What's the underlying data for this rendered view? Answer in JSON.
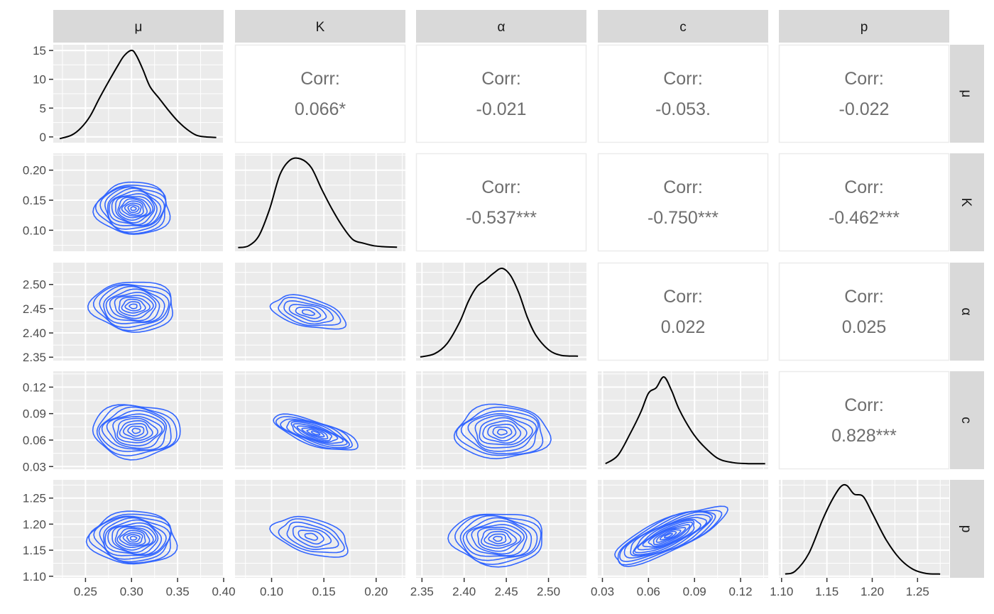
{
  "chart_data": {
    "type": "scatter-matrix",
    "variables": [
      "μ",
      "K",
      "α",
      "c",
      "p"
    ],
    "panel_background": "#EBEBEB",
    "strip_background": "#D9D9D9",
    "contour_color": "#3366FF",
    "density_color": "#000000",
    "correlation_label": "Corr:",
    "correlations": [
      {
        "row": 0,
        "col": 1,
        "value": "0.066*"
      },
      {
        "row": 0,
        "col": 2,
        "value": "-0.021"
      },
      {
        "row": 0,
        "col": 3,
        "value": "-0.053."
      },
      {
        "row": 0,
        "col": 4,
        "value": "-0.022"
      },
      {
        "row": 1,
        "col": 2,
        "value": "-0.537***"
      },
      {
        "row": 1,
        "col": 3,
        "value": "-0.750***"
      },
      {
        "row": 1,
        "col": 4,
        "value": "-0.462***"
      },
      {
        "row": 2,
        "col": 3,
        "value": "0.022"
      },
      {
        "row": 2,
        "col": 4,
        "value": "0.025"
      },
      {
        "row": 3,
        "col": 4,
        "value": "0.828***"
      }
    ],
    "x_axes": [
      {
        "range": [
          0.215,
          0.4
        ],
        "ticks": [
          0.25,
          0.3,
          0.35,
          0.4
        ],
        "labels": [
          "0.25",
          "0.30",
          "0.35",
          "0.40"
        ]
      },
      {
        "range": [
          0.065,
          0.228
        ],
        "ticks": [
          0.1,
          0.15,
          0.2
        ],
        "labels": [
          "0.10",
          "0.15",
          "0.20"
        ]
      },
      {
        "range": [
          2.343,
          2.545
        ],
        "ticks": [
          2.35,
          2.4,
          2.45,
          2.5
        ],
        "labels": [
          "2.35",
          "2.40",
          "2.45",
          "2.50"
        ]
      },
      {
        "range": [
          0.027,
          0.138
        ],
        "ticks": [
          0.03,
          0.06,
          0.09,
          0.12
        ],
        "labels": [
          "0.03",
          "0.06",
          "0.09",
          "0.12"
        ]
      },
      {
        "range": [
          1.097,
          1.285
        ],
        "ticks": [
          1.1,
          1.15,
          1.2,
          1.25
        ],
        "labels": [
          "1.10",
          "1.15",
          "1.20",
          "1.25"
        ]
      }
    ],
    "y_axes": [
      {
        "range": [
          -1,
          16
        ],
        "ticks": [
          0,
          5,
          10,
          15
        ],
        "labels": [
          "0",
          "5",
          "10",
          "15"
        ]
      },
      {
        "range": [
          0.065,
          0.228
        ],
        "ticks": [
          0.1,
          0.15,
          0.2
        ],
        "labels": [
          "0.10",
          "0.15",
          "0.20"
        ]
      },
      {
        "range": [
          2.343,
          2.545
        ],
        "ticks": [
          2.35,
          2.4,
          2.45,
          2.5
        ],
        "labels": [
          "2.35",
          "2.40",
          "2.45",
          "2.50"
        ]
      },
      {
        "range": [
          0.027,
          0.138
        ],
        "ticks": [
          0.03,
          0.06,
          0.09,
          0.12
        ],
        "labels": [
          "0.03",
          "0.06",
          "0.09",
          "0.12"
        ]
      },
      {
        "range": [
          1.097,
          1.285
        ],
        "ticks": [
          1.1,
          1.15,
          1.2,
          1.25
        ],
        "labels": [
          "1.10",
          "1.15",
          "1.20",
          "1.25"
        ]
      }
    ],
    "densities": [
      {
        "var": "μ",
        "x": [
          0.222,
          0.235,
          0.245,
          0.255,
          0.265,
          0.275,
          0.285,
          0.292,
          0.3,
          0.305,
          0.312,
          0.32,
          0.33,
          0.34,
          0.35,
          0.36,
          0.37,
          0.38,
          0.392
        ],
        "y": [
          0.2,
          0.8,
          2.0,
          4.0,
          7.0,
          9.8,
          12.5,
          14.2,
          15.1,
          14.3,
          12.0,
          9.0,
          7.0,
          5.0,
          3.2,
          1.8,
          0.8,
          0.5,
          0.4
        ]
      },
      {
        "var": "K",
        "x": [
          0.068,
          0.078,
          0.088,
          0.098,
          0.108,
          0.118,
          0.128,
          0.138,
          0.148,
          0.158,
          0.168,
          0.178,
          0.188,
          0.198,
          0.208,
          0.22
        ],
        "y": [
          0.1,
          0.3,
          1.5,
          4.5,
          8.5,
          10.2,
          10.3,
          9.3,
          6.8,
          4.5,
          2.5,
          1.0,
          0.6,
          0.3,
          0.2,
          0.15
        ]
      },
      {
        "var": "α",
        "x": [
          2.348,
          2.365,
          2.38,
          2.395,
          2.405,
          2.415,
          2.425,
          2.435,
          2.445,
          2.455,
          2.465,
          2.475,
          2.485,
          2.5,
          2.515,
          2.535
        ],
        "y": [
          0.1,
          0.5,
          1.8,
          4.5,
          7.0,
          8.8,
          9.6,
          10.5,
          11.1,
          10.2,
          8.0,
          5.0,
          2.8,
          1.0,
          0.3,
          0.2
        ]
      },
      {
        "var": "c",
        "x": [
          0.032,
          0.04,
          0.048,
          0.055,
          0.06,
          0.065,
          0.07,
          0.075,
          0.08,
          0.088,
          0.095,
          0.105,
          0.115,
          0.125,
          0.136
        ],
        "y": [
          0.5,
          2.0,
          6.0,
          10.0,
          13.5,
          14.5,
          16.5,
          14.0,
          10.5,
          6.5,
          4.0,
          1.5,
          0.7,
          0.5,
          0.5
        ]
      },
      {
        "var": "p",
        "x": [
          1.104,
          1.115,
          1.13,
          1.145,
          1.155,
          1.165,
          1.172,
          1.18,
          1.19,
          1.2,
          1.215,
          1.23,
          1.245,
          1.26,
          1.275
        ],
        "y": [
          0.2,
          0.8,
          4.5,
          11.5,
          15.5,
          18.5,
          18.8,
          17.0,
          16.5,
          13.0,
          7.5,
          3.5,
          1.2,
          0.3,
          0.2
        ]
      }
    ],
    "contours": [
      {
        "row": 1,
        "col": 0,
        "levels": 14,
        "center": [
          0.302,
          0.136
        ],
        "spread": [
          0.04,
          0.043
        ],
        "tilt": 0.0
      },
      {
        "row": 2,
        "col": 0,
        "levels": 11,
        "center": [
          0.302,
          2.455
        ],
        "spread": [
          0.045,
          0.051
        ],
        "tilt": 0.0
      },
      {
        "row": 2,
        "col": 1,
        "levels": 6,
        "center": [
          0.135,
          2.442
        ],
        "spread": [
          0.035,
          0.034
        ],
        "tilt": -0.5
      },
      {
        "row": 3,
        "col": 0,
        "levels": 11,
        "center": [
          0.305,
          0.0705
        ],
        "spread": [
          0.047,
          0.03
        ],
        "tilt": 0.0
      },
      {
        "row": 3,
        "col": 1,
        "levels": 10,
        "center": [
          0.142,
          0.068
        ],
        "spread": [
          0.04,
          0.02
        ],
        "tilt": -0.75
      },
      {
        "row": 3,
        "col": 2,
        "levels": 10,
        "center": [
          2.445,
          0.069
        ],
        "spread": [
          0.055,
          0.03
        ],
        "tilt": 0.0
      },
      {
        "row": 4,
        "col": 0,
        "levels": 14,
        "center": [
          0.302,
          1.173
        ],
        "spread": [
          0.047,
          0.05
        ],
        "tilt": 0.0
      },
      {
        "row": 4,
        "col": 1,
        "levels": 6,
        "center": [
          0.138,
          1.176
        ],
        "spread": [
          0.036,
          0.038
        ],
        "tilt": -0.46
      },
      {
        "row": 4,
        "col": 2,
        "levels": 11,
        "center": [
          2.44,
          1.172
        ],
        "spread": [
          0.055,
          0.05
        ],
        "tilt": 0.0
      },
      {
        "row": 4,
        "col": 3,
        "levels": 14,
        "center": [
          0.073,
          1.178
        ],
        "spread": [
          0.036,
          0.055
        ],
        "tilt": 0.83
      }
    ]
  }
}
